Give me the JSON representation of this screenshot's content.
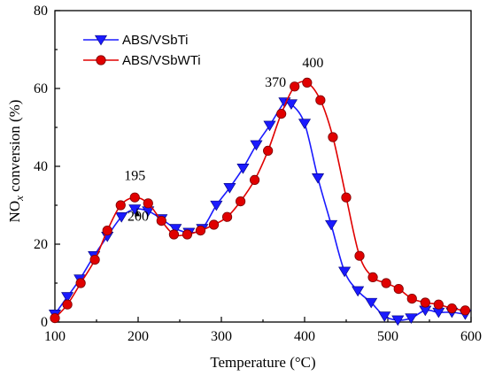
{
  "chart_data": {
    "type": "line",
    "xlabel_prefix": "Temperature (",
    "xlabel_unit": "°C",
    "xlabel_suffix": ")",
    "ylabel_prefix": "NO",
    "ylabel_sub": "x",
    "ylabel_suffix": " conversion (%)",
    "xlim": [
      100,
      600
    ],
    "ylim": [
      0,
      80
    ],
    "xticks": [
      100,
      200,
      300,
      400,
      500,
      600
    ],
    "yticks": [
      0,
      20,
      40,
      60,
      80
    ],
    "legend_position": "top-left",
    "series": [
      {
        "name": "ABS/VSbTi",
        "color": "#1a1aff",
        "marker": "triangle-down",
        "x": [
          100,
          115,
          130,
          147,
          163,
          180,
          196,
          212,
          228,
          245,
          261,
          277,
          294,
          310,
          326,
          342,
          358,
          376,
          384,
          400,
          416,
          432,
          448,
          464,
          480,
          496,
          512,
          528,
          545,
          561,
          577,
          593
        ],
        "y": [
          2,
          6.5,
          11,
          17,
          22,
          27,
          29,
          28.5,
          26.5,
          24,
          23,
          24,
          30,
          34.5,
          39.5,
          45.5,
          50.5,
          56.5,
          56,
          51,
          37,
          25,
          13,
          8,
          5,
          1.5,
          0.5,
          1,
          3,
          2.5,
          2.5,
          2
        ]
      },
      {
        "name": "ABS/VSbWTi",
        "color": "#e00000",
        "marker": "circle",
        "x": [
          100,
          115,
          131,
          148,
          163,
          179,
          196,
          212,
          228,
          243,
          259,
          275,
          291,
          307,
          323,
          340,
          356,
          372,
          388,
          403,
          419,
          434,
          450,
          466,
          482,
          498,
          513,
          529,
          545,
          561,
          577,
          593
        ],
        "y": [
          1,
          4.5,
          10,
          16,
          23.5,
          30,
          32,
          30.5,
          26,
          22.5,
          22.5,
          23.5,
          25,
          27,
          31,
          36.5,
          44,
          53.5,
          60.5,
          61.5,
          57,
          47.5,
          32,
          17,
          11.5,
          10,
          8.5,
          6,
          5,
          4.5,
          3.5,
          3
        ]
      }
    ],
    "annotations": [
      {
        "text": "195",
        "x": 196,
        "y": 36.5,
        "arrow": false
      },
      {
        "text": "200",
        "x": 200,
        "y": 26,
        "arrow": true,
        "arrow_to": 29
      },
      {
        "text": "370",
        "x": 365,
        "y": 60.5,
        "arrow": false
      },
      {
        "text": "400",
        "x": 410,
        "y": 65.5,
        "arrow": false
      }
    ]
  }
}
